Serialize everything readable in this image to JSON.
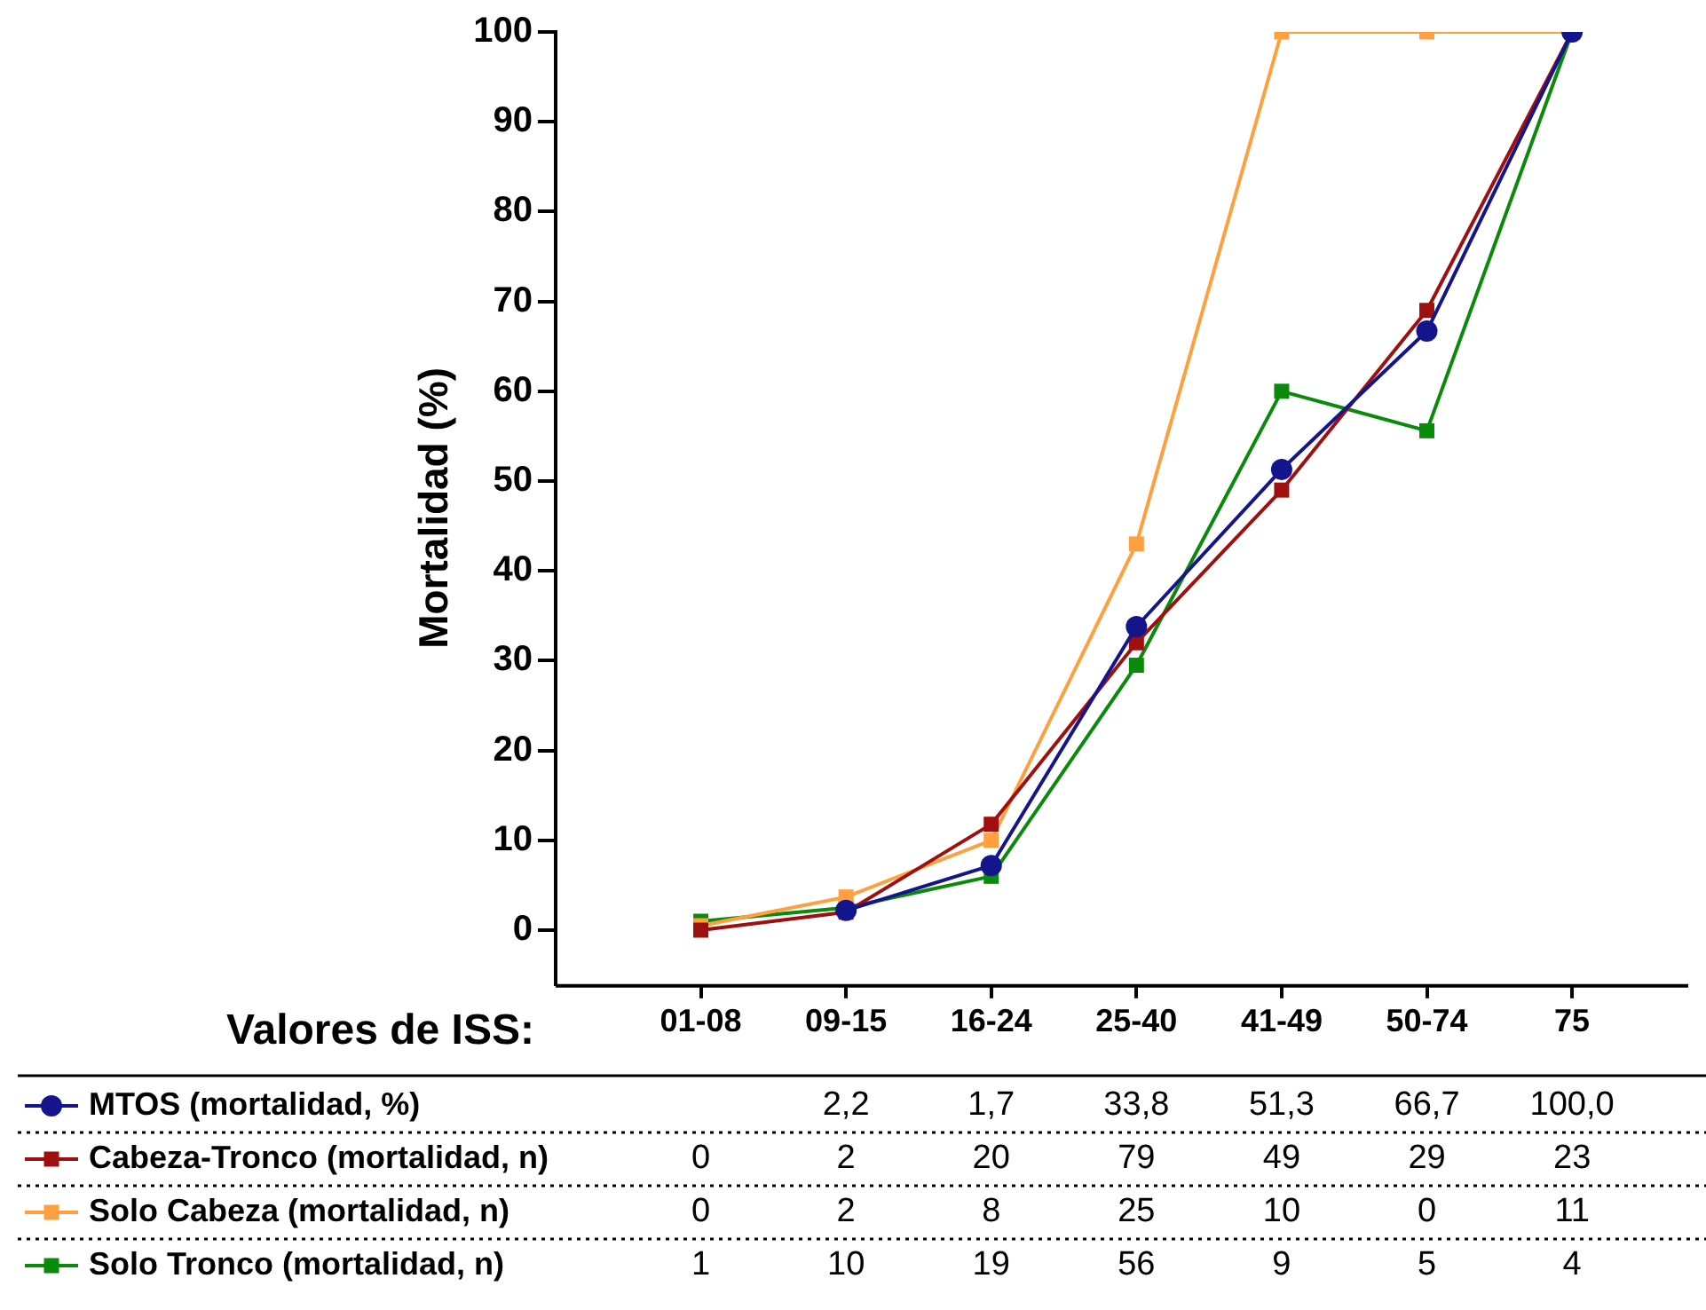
{
  "chart_data": {
    "type": "line",
    "ylabel": "Mortalidad (%)",
    "xlabel": "Valores de ISS:",
    "categories": [
      "01-08",
      "09-15",
      "16-24",
      "25-40",
      "41-49",
      "50-74",
      "75"
    ],
    "ylim": [
      -6,
      100
    ],
    "yticks": [
      0,
      10,
      20,
      30,
      40,
      50,
      60,
      70,
      80,
      90,
      100
    ],
    "grid": false,
    "legend": "bottom",
    "line_style": "solid",
    "series": [
      {
        "name": "MTOS (mortalidad, %)",
        "color": "#14148c",
        "marker": "circle",
        "values": [
          null,
          2.2,
          7.2,
          33.8,
          51.3,
          66.7,
          100
        ]
      },
      {
        "name": "Cabeza-Tronco (mortalidad, n)",
        "color": "#a00f0f",
        "marker": "square",
        "values": [
          0,
          2,
          11.8,
          32,
          49,
          69,
          100
        ]
      },
      {
        "name": "Solo Cabeza (mortalidad, n)",
        "color": "#ffa040",
        "marker": "square",
        "values": [
          0.5,
          3.7,
          10,
          43,
          100,
          100,
          100
        ]
      },
      {
        "name": "Solo Tronco (mortalidad, n)",
        "color": "#0a8a0a",
        "marker": "square",
        "values": [
          1,
          2.5,
          6,
          29.5,
          60,
          55.6,
          100
        ]
      }
    ],
    "annotations": [
      "2,2",
      "1,7",
      "33,8",
      "51,3",
      "66,7",
      "100,0",
      "0",
      "2",
      "20",
      "79",
      "49",
      "29",
      "23",
      "0",
      "2",
      "8",
      "25",
      "10",
      "0",
      "11",
      "1",
      "10",
      "19",
      "56",
      "9",
      "5",
      "4"
    ]
  }
}
